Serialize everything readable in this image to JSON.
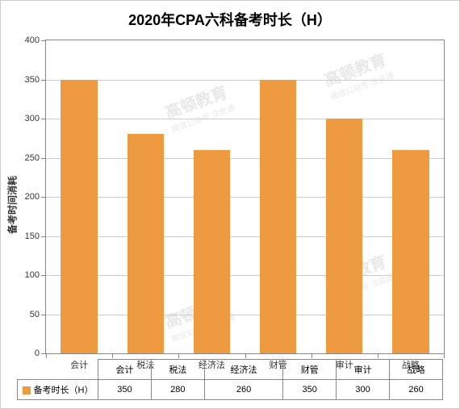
{
  "chart": {
    "type": "bar",
    "title": "2020年CPA六科备考时长（H）",
    "title_fontsize": 18,
    "ylabel": "备考时间消耗",
    "label_fontsize": 12,
    "ylim": [
      0,
      400
    ],
    "ytick_step": 50,
    "yticks": [
      0,
      50,
      100,
      150,
      200,
      250,
      300,
      350,
      400
    ],
    "categories": [
      "会计",
      "税法",
      "经济法",
      "财管",
      "审计",
      "战略"
    ],
    "values": [
      350,
      280,
      260,
      350,
      300,
      260
    ],
    "bar_color": "#ed9a41",
    "bar_width": 0.55,
    "background_color": "#ffffff",
    "grid_color": "#cccccc",
    "axis_color": "#888888",
    "tick_fontsize": 11,
    "legend": {
      "label": "备考时长（H）",
      "swatch_color": "#ed9a41"
    },
    "watermark": {
      "text_main": "高顿教育",
      "text_sub": "微信公众号:注会通",
      "color": "#e8e8e8"
    }
  }
}
